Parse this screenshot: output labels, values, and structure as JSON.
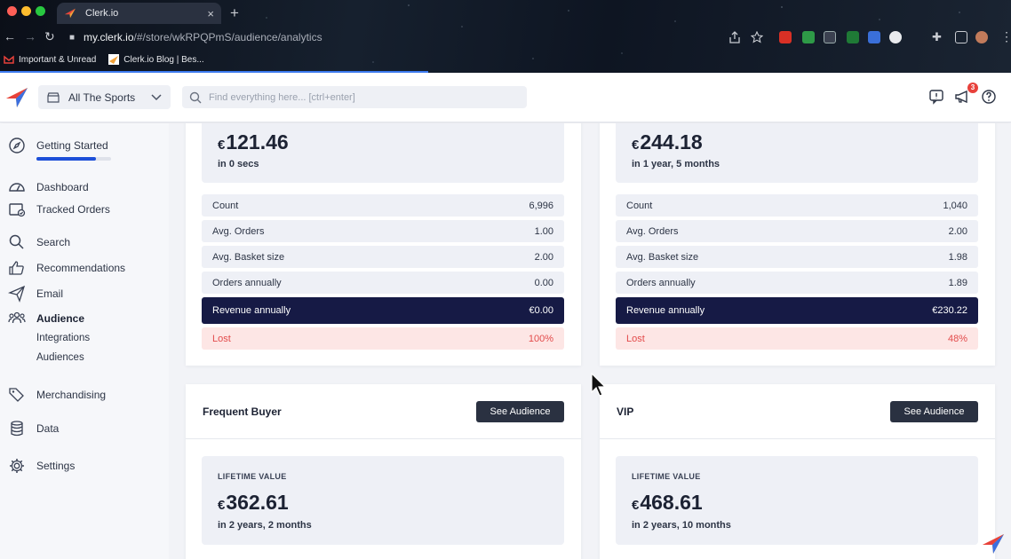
{
  "browser": {
    "tab_title": "Clerk.io",
    "tab_close": "×",
    "new_tab": "+",
    "url_host": "my.clerk.io",
    "url_path": "/#/store/wkRPQPmS/audience/analytics",
    "bookmarks": [
      "Important & Unread",
      "Clerk.io Blog | Bes..."
    ]
  },
  "header": {
    "store_name": "All The Sports",
    "search_placeholder": "Find everything here... [ctrl+enter]",
    "notification_count": "3"
  },
  "sidebar": {
    "getting_started": "Getting Started",
    "getting_started_progress": 0.8,
    "items": [
      {
        "label": "Dashboard"
      },
      {
        "label": "Tracked Orders"
      },
      {
        "label": "Search"
      },
      {
        "label": "Recommendations"
      },
      {
        "label": "Email"
      },
      {
        "label": "Audience"
      },
      {
        "label": "Merchandising"
      },
      {
        "label": "Data"
      },
      {
        "label": "Settings"
      }
    ],
    "audience_sub": [
      "Integrations",
      "Audiences"
    ]
  },
  "cards": [
    {
      "currency": "€",
      "value": "121.46",
      "sub": "in 0 secs",
      "rows": [
        {
          "label": "Count",
          "value": "6,996"
        },
        {
          "label": "Avg. Orders",
          "value": "1.00"
        },
        {
          "label": "Avg. Basket size",
          "value": "2.00"
        },
        {
          "label": "Orders annually",
          "value": "0.00"
        },
        {
          "label": "Revenue annually",
          "value": "€0.00"
        },
        {
          "label": "Lost",
          "value": "100%"
        }
      ]
    },
    {
      "currency": "€",
      "value": "244.18",
      "sub": "in 1 year, 5 months",
      "rows": [
        {
          "label": "Count",
          "value": "1,040"
        },
        {
          "label": "Avg. Orders",
          "value": "2.00"
        },
        {
          "label": "Avg. Basket size",
          "value": "1.98"
        },
        {
          "label": "Orders annually",
          "value": "1.89"
        },
        {
          "label": "Revenue annually",
          "value": "€230.22"
        },
        {
          "label": "Lost",
          "value": "48%"
        }
      ]
    },
    {
      "title": "Frequent Buyer",
      "button": "See Audience",
      "ltv_label": "LIFETIME VALUE",
      "currency": "€",
      "value": "362.61",
      "sub": "in 2 years, 2 months"
    },
    {
      "title": "VIP",
      "button": "See Audience",
      "ltv_label": "LIFETIME VALUE",
      "currency": "€",
      "value": "468.61",
      "sub": "in 2 years, 10 months"
    }
  ],
  "colors": {
    "accent_blue": "#1d4fd8",
    "dark_row": "#161a45",
    "lost_bg": "#fde6e5",
    "lost_text": "#e34b4b",
    "button_bg": "#2a3141"
  }
}
